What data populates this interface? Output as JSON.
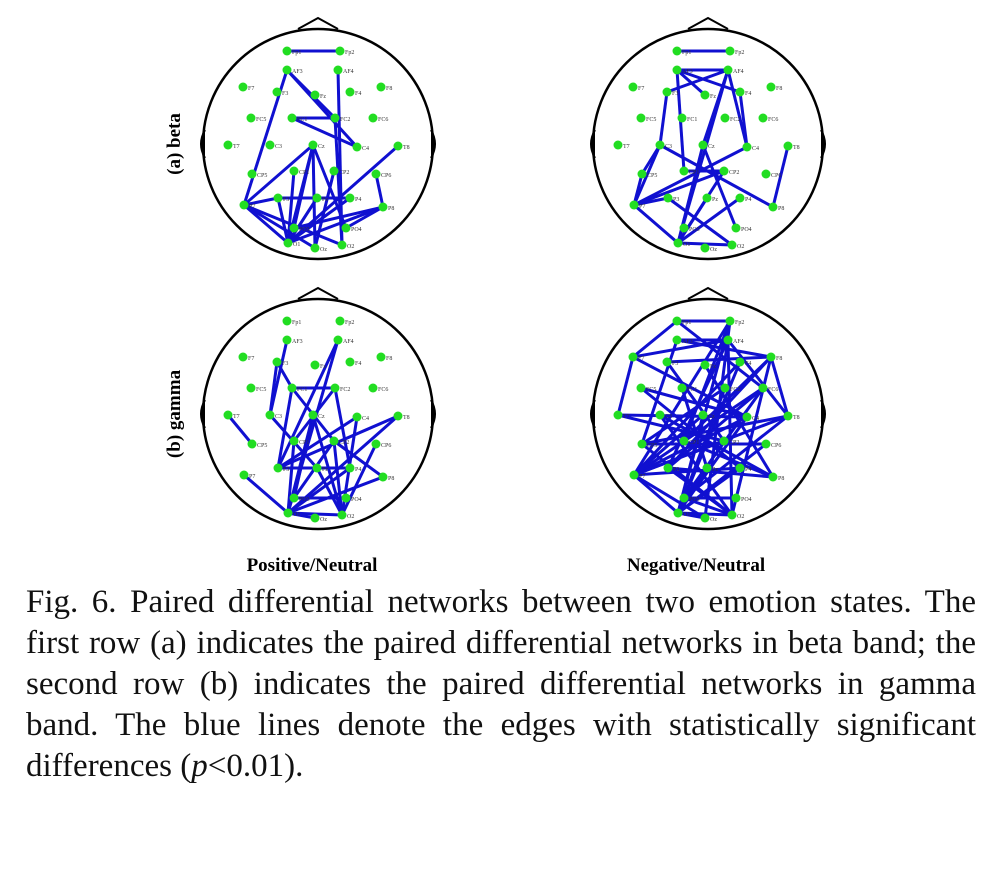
{
  "figure": {
    "row_labels": [
      "(a) beta",
      "(b) gamma"
    ],
    "column_labels": [
      "Positive/Neutral",
      "Negative/Neutral"
    ],
    "edge_color": "#1010d0",
    "node_color": "#22dd22",
    "electrodes": [
      "Fp1",
      "Fp2",
      "AF3",
      "AF4",
      "F7",
      "F3",
      "Fz",
      "F4",
      "F8",
      "FC5",
      "FC1",
      "FC2",
      "FC6",
      "T7",
      "C3",
      "Cz",
      "C4",
      "T8",
      "CP5",
      "CP1",
      "CP2",
      "CP6",
      "P7",
      "P3",
      "Pz",
      "P4",
      "P8",
      "PO3",
      "PO4",
      "O1",
      "Oz",
      "O2"
    ],
    "networks": [
      {
        "row": "(a) beta",
        "column": "Positive/Neutral",
        "edges": [
          [
            "Fp1",
            "Fp2"
          ],
          [
            "AF3",
            "P7"
          ],
          [
            "AF3",
            "FC2"
          ],
          [
            "AF3",
            "C4"
          ],
          [
            "AF4",
            "O2"
          ],
          [
            "FC1",
            "FC2"
          ],
          [
            "FC1",
            "C4"
          ],
          [
            "FC2",
            "O2"
          ],
          [
            "P7",
            "Cz"
          ],
          [
            "P7",
            "P3"
          ],
          [
            "P7",
            "O1"
          ],
          [
            "P7",
            "Oz"
          ],
          [
            "P7",
            "O2"
          ],
          [
            "Cz",
            "O1"
          ],
          [
            "Cz",
            "PO3"
          ],
          [
            "Cz",
            "PO4"
          ],
          [
            "Cz",
            "Oz"
          ],
          [
            "T8",
            "O1"
          ],
          [
            "P3",
            "P4"
          ],
          [
            "P3",
            "O1"
          ],
          [
            "P4",
            "O1"
          ],
          [
            "P8",
            "O1"
          ],
          [
            "P8",
            "CP6"
          ],
          [
            "P8",
            "PO4"
          ],
          [
            "CP1",
            "O1"
          ],
          [
            "CP2",
            "Oz"
          ],
          [
            "PO3",
            "P8"
          ],
          [
            "Pz",
            "O1"
          ]
        ]
      },
      {
        "row": "(a) beta",
        "column": "Negative/Neutral",
        "edges": [
          [
            "Fp1",
            "Fp2"
          ],
          [
            "AF3",
            "AF4"
          ],
          [
            "AF3",
            "Fz"
          ],
          [
            "AF3",
            "F4"
          ],
          [
            "AF3",
            "CP1"
          ],
          [
            "AF4",
            "F3"
          ],
          [
            "AF4",
            "Cz"
          ],
          [
            "AF4",
            "C4"
          ],
          [
            "AF4",
            "O1"
          ],
          [
            "F3",
            "C3"
          ],
          [
            "C3",
            "P7"
          ],
          [
            "C3",
            "P8"
          ],
          [
            "C3",
            "CP5"
          ],
          [
            "F4",
            "C4"
          ],
          [
            "C4",
            "P7"
          ],
          [
            "Cz",
            "O1"
          ],
          [
            "CP5",
            "P7"
          ],
          [
            "P7",
            "P3"
          ],
          [
            "P7",
            "O1"
          ],
          [
            "P7",
            "CP2"
          ],
          [
            "CP1",
            "CP2"
          ],
          [
            "CP2",
            "O1"
          ],
          [
            "P3",
            "O2"
          ],
          [
            "Pz",
            "O1"
          ],
          [
            "P4",
            "O1"
          ],
          [
            "T8",
            "P8"
          ],
          [
            "Cz",
            "PO4"
          ],
          [
            "O1",
            "O2"
          ]
        ]
      },
      {
        "row": "(b) gamma",
        "column": "Positive/Neutral",
        "edges": [
          [
            "AF3",
            "C3"
          ],
          [
            "F3",
            "FC1"
          ],
          [
            "F3",
            "C3"
          ],
          [
            "FC1",
            "FC2"
          ],
          [
            "FC1",
            "P3"
          ],
          [
            "FC1",
            "CP2"
          ],
          [
            "FC2",
            "CP1"
          ],
          [
            "FC2",
            "P4"
          ],
          [
            "AF4",
            "O1"
          ],
          [
            "AF4",
            "P3"
          ],
          [
            "T7",
            "CP5"
          ],
          [
            "C3",
            "Pz"
          ],
          [
            "Cz",
            "O1"
          ],
          [
            "Cz",
            "O2"
          ],
          [
            "Cz",
            "PO3"
          ],
          [
            "C4",
            "O2"
          ],
          [
            "C4",
            "P3"
          ],
          [
            "T8",
            "P3"
          ],
          [
            "T8",
            "O1"
          ],
          [
            "CP1",
            "O1"
          ],
          [
            "CP2",
            "O2"
          ],
          [
            "CP2",
            "PO3"
          ],
          [
            "CP6",
            "O2"
          ],
          [
            "P7",
            "O1"
          ],
          [
            "P3",
            "P4"
          ],
          [
            "Pz",
            "O2"
          ],
          [
            "P4",
            "O1"
          ],
          [
            "P8",
            "O1"
          ],
          [
            "P8",
            "CP2"
          ],
          [
            "PO3",
            "PO4"
          ],
          [
            "O1",
            "O2"
          ],
          [
            "O1",
            "Oz"
          ]
        ]
      },
      {
        "row": "(b) gamma",
        "column": "Negative/Neutral",
        "edges": [
          [
            "Fp1",
            "Fp2"
          ],
          [
            "Fp1",
            "F7"
          ],
          [
            "Fp1",
            "FC6"
          ],
          [
            "Fp2",
            "O1"
          ],
          [
            "Fp2",
            "P7"
          ],
          [
            "Fp2",
            "CP1"
          ],
          [
            "Fp2",
            "Oz"
          ],
          [
            "AF3",
            "AF4"
          ],
          [
            "AF3",
            "F8"
          ],
          [
            "AF3",
            "CP5"
          ],
          [
            "AF4",
            "F7"
          ],
          [
            "AF4",
            "T8"
          ],
          [
            "AF4",
            "P3"
          ],
          [
            "AF4",
            "O2"
          ],
          [
            "F7",
            "T7"
          ],
          [
            "F7",
            "C4"
          ],
          [
            "F3",
            "F8"
          ],
          [
            "F3",
            "CP2"
          ],
          [
            "Fz",
            "P8"
          ],
          [
            "F4",
            "P7"
          ],
          [
            "F4",
            "O1"
          ],
          [
            "F8",
            "T8"
          ],
          [
            "F8",
            "CP1"
          ],
          [
            "F8",
            "P3"
          ],
          [
            "F8",
            "O2"
          ],
          [
            "FC5",
            "C4"
          ],
          [
            "FC5",
            "P4"
          ],
          [
            "FC1",
            "Pz"
          ],
          [
            "FC2",
            "CP5"
          ],
          [
            "FC2",
            "O1"
          ],
          [
            "FC6",
            "P7"
          ],
          [
            "FC6",
            "P3"
          ],
          [
            "FC6",
            "PO3"
          ],
          [
            "T7",
            "C4"
          ],
          [
            "T7",
            "CP2"
          ],
          [
            "C3",
            "P8"
          ],
          [
            "C3",
            "O2"
          ],
          [
            "Cz",
            "O1"
          ],
          [
            "Cz",
            "P7"
          ],
          [
            "C4",
            "P7"
          ],
          [
            "C4",
            "O1"
          ],
          [
            "T8",
            "CP5"
          ],
          [
            "T8",
            "P7"
          ],
          [
            "T8",
            "PO3"
          ],
          [
            "CP5",
            "CP6"
          ],
          [
            "CP5",
            "O2"
          ],
          [
            "CP1",
            "P8"
          ],
          [
            "CP2",
            "P7"
          ],
          [
            "CP6",
            "O1"
          ],
          [
            "P7",
            "P4"
          ],
          [
            "P7",
            "O1"
          ],
          [
            "P7",
            "Oz"
          ],
          [
            "P3",
            "P8"
          ],
          [
            "P3",
            "O2"
          ],
          [
            "Pz",
            "O1"
          ],
          [
            "P4",
            "O1"
          ],
          [
            "PO3",
            "PO4"
          ],
          [
            "PO3",
            "O2"
          ],
          [
            "O1",
            "O2"
          ],
          [
            "O1",
            "Oz"
          ]
        ]
      }
    ]
  },
  "caption": "Fig. 6. Paired differential networks between two emotion states. The first row (a) indicates the paired differential networks in beta band; the second row (b) indicates the paired differential networks in gamma band. The blue lines denote the edges with statistically significant differences",
  "caption_tail_pre": "(",
  "caption_p": "p",
  "caption_tail_post": "<0.01)."
}
